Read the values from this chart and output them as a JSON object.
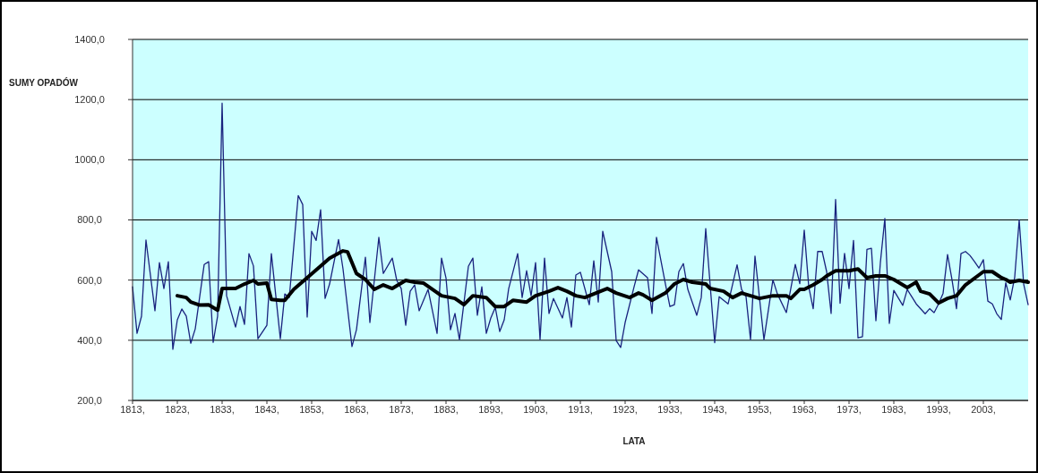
{
  "chart_data": {
    "type": "line",
    "xlabel": "LATA",
    "ylabel": "SUMY OPADÓW",
    "xlim": [
      1813,
      2013
    ],
    "ylim": [
      200,
      1400
    ],
    "xticks": [
      {
        "value": 1813,
        "label": "1813,"
      },
      {
        "value": 1823,
        "label": "1823,"
      },
      {
        "value": 1833,
        "label": "1833,"
      },
      {
        "value": 1843,
        "label": "1843,"
      },
      {
        "value": 1853,
        "label": "1853,"
      },
      {
        "value": 1863,
        "label": "1863,"
      },
      {
        "value": 1873,
        "label": "1873,"
      },
      {
        "value": 1883,
        "label": "1883,"
      },
      {
        "value": 1893,
        "label": "1893,"
      },
      {
        "value": 1903,
        "label": "1903,"
      },
      {
        "value": 1913,
        "label": "1913,"
      },
      {
        "value": 1923,
        "label": "1923,"
      },
      {
        "value": 1933,
        "label": "1933,"
      },
      {
        "value": 1943,
        "label": "1943,"
      },
      {
        "value": 1953,
        "label": "1953,"
      },
      {
        "value": 1963,
        "label": "1963,"
      },
      {
        "value": 1973,
        "label": "1973,"
      },
      {
        "value": 1983,
        "label": "1983,"
      },
      {
        "value": 1993,
        "label": "1993,"
      },
      {
        "value": 2003,
        "label": "2003,"
      }
    ],
    "yticks": [
      {
        "value": 200,
        "label": "200,0"
      },
      {
        "value": 400,
        "label": "400,0"
      },
      {
        "value": 600,
        "label": "600,0"
      },
      {
        "value": 800,
        "label": "800,0"
      },
      {
        "value": 1000,
        "label": "1000,0"
      },
      {
        "value": 1200,
        "label": "1200,0"
      },
      {
        "value": 1400,
        "label": "1400,0"
      }
    ],
    "grid": "y",
    "marker": "none",
    "series": [
      {
        "color": "#1a237e",
        "x": [
          1813,
          1814,
          1815,
          1816,
          1818,
          1819,
          1820,
          1821,
          1822,
          1823,
          1824,
          1825,
          1826,
          1827,
          1829,
          1830,
          1831,
          1832,
          1833,
          1834,
          1836,
          1837,
          1838,
          1839,
          1840,
          1841,
          1843,
          1844,
          1846,
          1847,
          1848,
          1850,
          1851,
          1852,
          1853,
          1854,
          1855,
          1856,
          1857,
          1859,
          1860,
          1862,
          1863,
          1865,
          1866,
          1868,
          1869,
          1871,
          1872,
          1873,
          1874,
          1875,
          1876,
          1877,
          1879,
          1881,
          1882,
          1883,
          1884,
          1885,
          1886,
          1888,
          1889,
          1890,
          1891,
          1892,
          1893,
          1894,
          1895,
          1896,
          1897,
          1899,
          1900,
          1901,
          1902,
          1903,
          1904,
          1905,
          1906,
          1907,
          1909,
          1910,
          1911,
          1912,
          1913,
          1915,
          1916,
          1917,
          1918,
          1920,
          1921,
          1922,
          1923,
          1925,
          1926,
          1928,
          1929,
          1930,
          1932,
          1933,
          1934,
          1935,
          1936,
          1937,
          1939,
          1940,
          1941,
          1943,
          1944,
          1946,
          1948,
          1949,
          1950,
          1951,
          1952,
          1954,
          1956,
          1957,
          1959,
          1961,
          1962,
          1963,
          1964,
          1965,
          1966,
          1967,
          1968,
          1969,
          1970,
          1971,
          1972,
          1973,
          1974,
          1975,
          1976,
          1977,
          1978,
          1979,
          1980,
          1981,
          1982,
          1983,
          1985,
          1986,
          1987,
          1988,
          1990,
          1991,
          1992,
          1993,
          1994,
          1995,
          1996,
          1997,
          1998,
          1999,
          2000,
          2001,
          2002,
          2003,
          2004,
          2005,
          2006,
          2007,
          2008,
          2009,
          2010,
          2011,
          2012,
          2013
        ],
        "values": [
          578,
          423,
          480,
          733,
          498,
          658,
          572,
          661,
          370,
          468,
          504,
          480,
          390,
          438,
          652,
          661,
          393,
          480,
          1188,
          548,
          444,
          512,
          453,
          688,
          647,
          405,
          450,
          688,
          405,
          554,
          542,
          881,
          851,
          477,
          762,
          732,
          834,
          539,
          587,
          735,
          637,
          379,
          435,
          676,
          459,
          742,
          622,
          673,
          599,
          572,
          450,
          563,
          584,
          498,
          569,
          423,
          673,
          607,
          435,
          489,
          402,
          646,
          673,
          483,
          578,
          423,
          474,
          509,
          429,
          468,
          572,
          688,
          542,
          631,
          548,
          658,
          402,
          673,
          489,
          539,
          474,
          542,
          444,
          617,
          626,
          518,
          664,
          527,
          762,
          628,
          399,
          376,
          459,
          578,
          634,
          608,
          489,
          742,
          587,
          512,
          518,
          628,
          655,
          569,
          483,
          542,
          771,
          392,
          545,
          521,
          651,
          569,
          545,
          402,
          680,
          402,
          601,
          554,
          492,
          652,
          588,
          766,
          578,
          505,
          695,
          695,
          628,
          489,
          868,
          523,
          689,
          572,
          732,
          408,
          412,
          702,
          706,
          465,
          658,
          805,
          456,
          566,
          516,
          569,
          545,
          521,
          488,
          505,
          492,
          521,
          556,
          685,
          601,
          505,
          688,
          695,
          682,
          662,
          640,
          668,
          530,
          521,
          488,
          469,
          591,
          534,
          610,
          800,
          587,
          518
        ]
      },
      {
        "color": "#000000",
        "x": [
          1823,
          1825,
          1826,
          1828,
          1830,
          1832,
          1833,
          1836,
          1838,
          1840,
          1841,
          1843,
          1844,
          1846,
          1847,
          1849,
          1852,
          1855,
          1857,
          1860,
          1861,
          1863,
          1865,
          1867,
          1869,
          1871,
          1874,
          1876,
          1878,
          1880,
          1882,
          1885,
          1887,
          1889,
          1892,
          1894,
          1896,
          1898,
          1901,
          1903,
          1906,
          1908,
          1910,
          1912,
          1914,
          1916,
          1919,
          1921,
          1924,
          1926,
          1927,
          1929,
          1932,
          1934,
          1936,
          1938,
          1941,
          1942,
          1945,
          1947,
          1949,
          1951,
          1953,
          1956,
          1959,
          1960,
          1962,
          1963,
          1965,
          1967,
          1968,
          1970,
          1972,
          1973,
          1975,
          1977,
          1979,
          1981,
          1983,
          1986,
          1988,
          1989,
          1991,
          1993,
          1995,
          1997,
          1999,
          2003,
          2005,
          2007,
          2008,
          2009,
          2011,
          2013
        ],
        "values": [
          548,
          542,
          527,
          517,
          518,
          500,
          572,
          572,
          587,
          599,
          587,
          590,
          536,
          533,
          533,
          569,
          608,
          647,
          673,
          697,
          694,
          622,
          602,
          569,
          584,
          572,
          599,
          593,
          590,
          569,
          548,
          539,
          518,
          548,
          542,
          512,
          512,
          533,
          527,
          548,
          563,
          575,
          563,
          548,
          542,
          554,
          572,
          557,
          542,
          557,
          551,
          533,
          557,
          587,
          602,
          593,
          587,
          572,
          563,
          542,
          557,
          548,
          539,
          548,
          548,
          539,
          569,
          569,
          584,
          602,
          614,
          631,
          631,
          631,
          637,
          608,
          614,
          614,
          602,
          575,
          593,
          563,
          554,
          524,
          539,
          548,
          584,
          628,
          628,
          608,
          602,
          593,
          599,
          593
        ]
      }
    ]
  }
}
